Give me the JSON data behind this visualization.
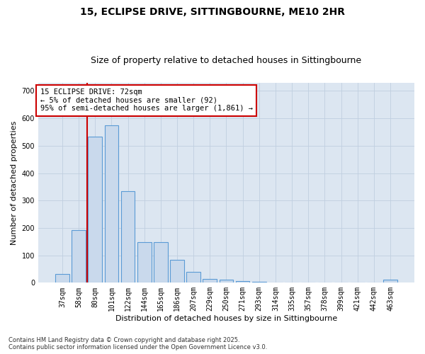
{
  "title_line1": "15, ECLIPSE DRIVE, SITTINGBOURNE, ME10 2HR",
  "title_line2": "Size of property relative to detached houses in Sittingbourne",
  "xlabel": "Distribution of detached houses by size in Sittingbourne",
  "ylabel": "Number of detached properties",
  "categories": [
    "37sqm",
    "58sqm",
    "80sqm",
    "101sqm",
    "122sqm",
    "144sqm",
    "165sqm",
    "186sqm",
    "207sqm",
    "229sqm",
    "250sqm",
    "271sqm",
    "293sqm",
    "314sqm",
    "335sqm",
    "357sqm",
    "378sqm",
    "399sqm",
    "421sqm",
    "442sqm",
    "463sqm"
  ],
  "values": [
    33,
    192,
    533,
    575,
    333,
    148,
    148,
    83,
    40,
    13,
    10,
    5,
    3,
    2,
    0,
    2,
    0,
    0,
    0,
    0,
    12
  ],
  "bar_color": "#c9d9ec",
  "bar_edge_color": "#5b9bd5",
  "bar_width": 0.85,
  "annotation_text": "15 ECLIPSE DRIVE: 72sqm\n← 5% of detached houses are smaller (92)\n95% of semi-detached houses are larger (1,861) →",
  "annotation_box_color": "white",
  "annotation_box_edge_color": "#cc0000",
  "vline_color": "#cc0000",
  "vline_x_idx": 1.5,
  "ylim": [
    0,
    730
  ],
  "yticks": [
    0,
    100,
    200,
    300,
    400,
    500,
    600,
    700
  ],
  "background_color": "#dce6f1",
  "grid_color": "#c0cfe0",
  "footer_line1": "Contains HM Land Registry data © Crown copyright and database right 2025.",
  "footer_line2": "Contains public sector information licensed under the Open Government Licence v3.0.",
  "title_fontsize": 10,
  "subtitle_fontsize": 9,
  "tick_fontsize": 7,
  "label_fontsize": 8,
  "annotation_fontsize": 7.5
}
